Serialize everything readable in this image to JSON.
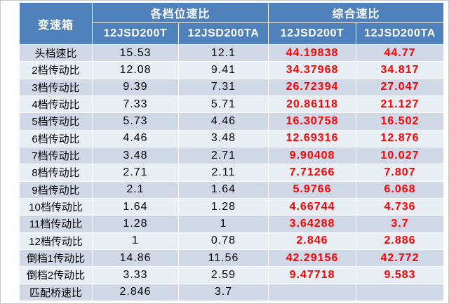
{
  "chart_data": {
    "type": "table",
    "header": {
      "corner": "变速箱",
      "groups": [
        {
          "label": "各档位速比",
          "columns": [
            "12JSD200T",
            "12JSD200TA"
          ]
        },
        {
          "label": "综合速比",
          "columns": [
            "12JSD200T",
            "12JSD200TA"
          ]
        }
      ]
    },
    "rows": [
      {
        "label": "头档速比",
        "values": [
          15.53,
          12.1,
          44.19838,
          44.77
        ]
      },
      {
        "label": "2档传动比",
        "values": [
          12.08,
          9.41,
          34.37968,
          34.817
        ]
      },
      {
        "label": "3档传动比",
        "values": [
          9.39,
          7.31,
          26.72394,
          27.047
        ]
      },
      {
        "label": "4档传动比",
        "values": [
          7.33,
          5.71,
          20.86118,
          21.127
        ]
      },
      {
        "label": "5档传动比",
        "values": [
          5.73,
          4.46,
          16.30758,
          16.502
        ]
      },
      {
        "label": "6档传动比",
        "values": [
          4.46,
          3.48,
          12.69316,
          12.876
        ]
      },
      {
        "label": "7档传动比",
        "values": [
          3.48,
          2.71,
          9.90408,
          10.027
        ]
      },
      {
        "label": "8档传动比",
        "values": [
          2.71,
          2.11,
          7.71266,
          7.807
        ]
      },
      {
        "label": "9档传动比",
        "values": [
          2.1,
          1.64,
          5.9766,
          6.068
        ]
      },
      {
        "label": "10档传动比",
        "values": [
          1.64,
          1.28,
          4.66744,
          4.736
        ]
      },
      {
        "label": "11档传动比",
        "values": [
          1.28,
          1,
          3.64288,
          3.7
        ]
      },
      {
        "label": "12档传动比",
        "values": [
          1,
          0.78,
          2.846,
          2.886
        ]
      },
      {
        "label": "倒档1传动比",
        "values": [
          14.86,
          11.56,
          42.29156,
          42.772
        ]
      },
      {
        "label": "倒档2传动比",
        "values": [
          3.33,
          2.59,
          9.47718,
          9.583
        ]
      },
      {
        "label": "匹配桥速比",
        "values": [
          2.846,
          3.7,
          null,
          null
        ]
      }
    ]
  },
  "colors": {
    "header_bg": "#4F81BD",
    "header_text": "#FFFFFF",
    "band_odd": "#D0D8E8",
    "band_even": "#E9EDF4",
    "highlight_text": "#FF0000"
  }
}
